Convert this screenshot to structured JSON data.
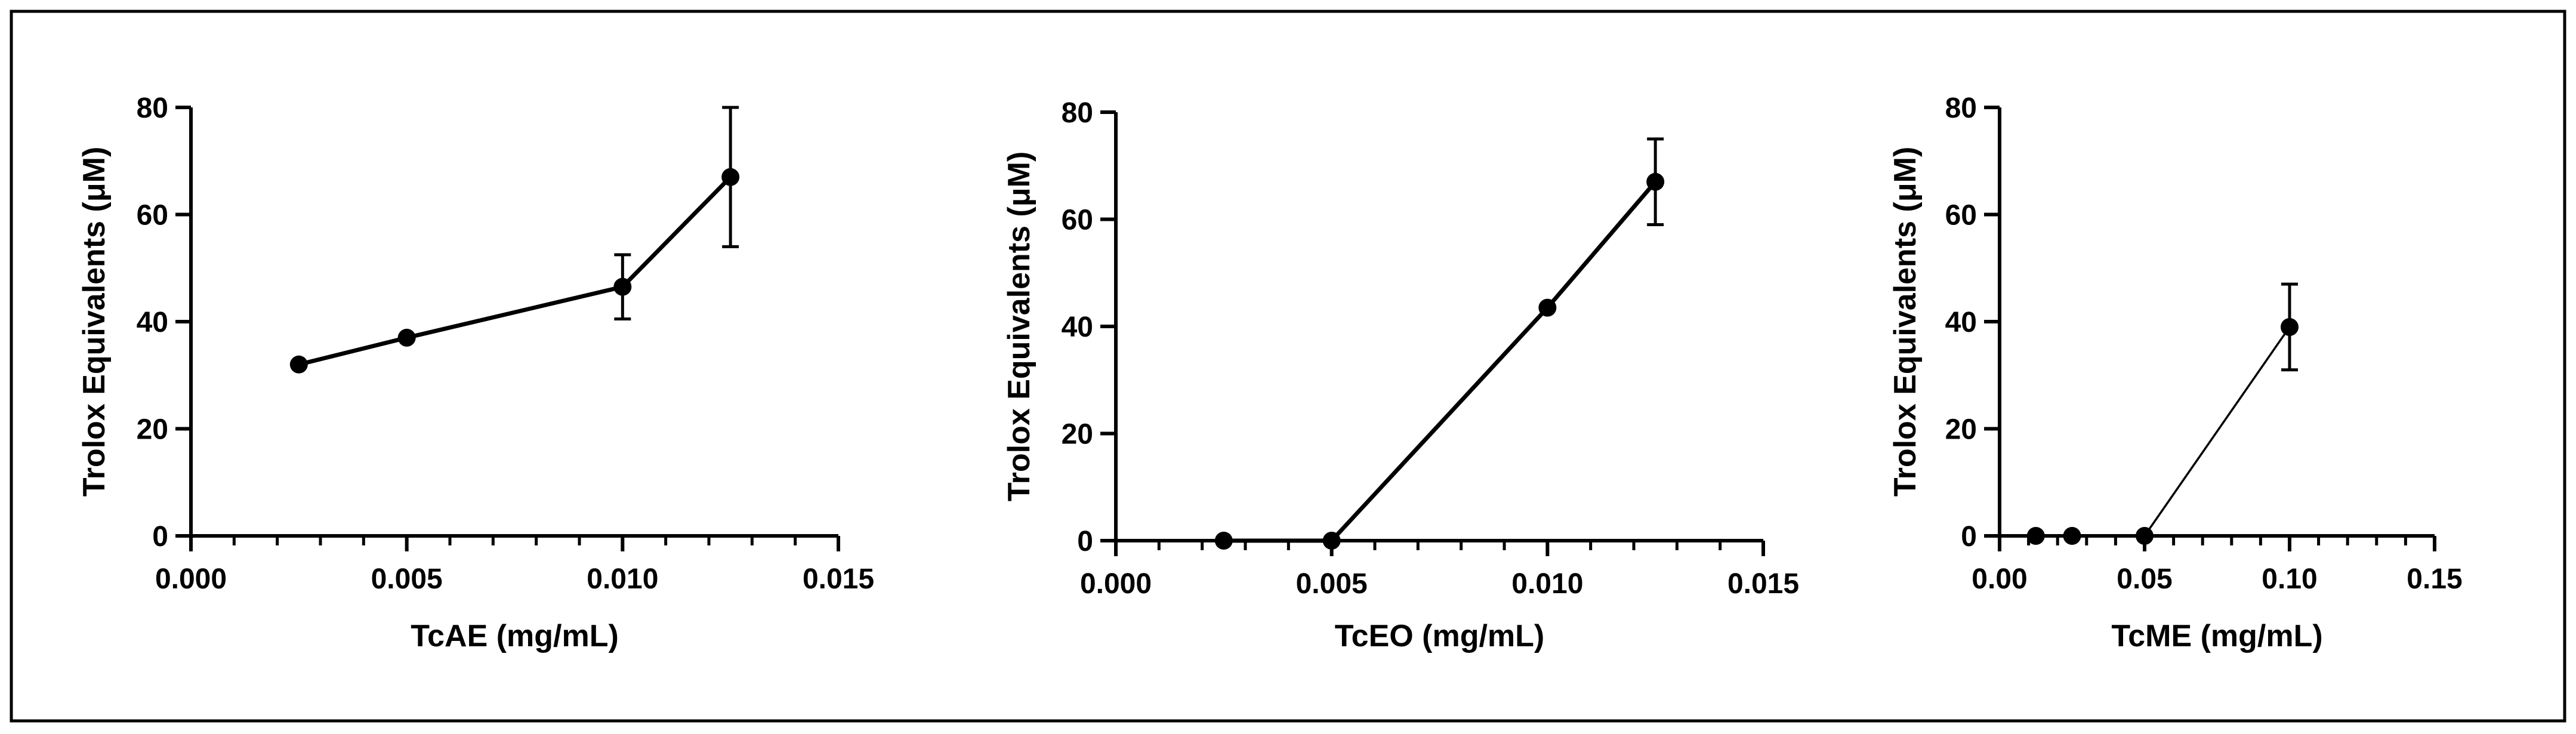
{
  "chart_data": [
    {
      "type": "line",
      "xlabel": "TcAE (mg/mL)",
      "ylabel": "Trolox Equivalents (μM)",
      "xlim": [
        0,
        0.015
      ],
      "ylim": [
        0,
        80
      ],
      "xticks": [
        0.0,
        0.005,
        0.01,
        0.015
      ],
      "xtick_labels": [
        "0.000",
        "0.005",
        "0.010",
        "0.015"
      ],
      "yticks": [
        0,
        20,
        40,
        60,
        80
      ],
      "ytick_labels": [
        "0",
        "20",
        "40",
        "60",
        "80"
      ],
      "x_minor_ticks": 5,
      "series": [
        {
          "name": "TcAE",
          "x": [
            0.0025,
            0.005,
            0.01,
            0.0125
          ],
          "y": [
            32,
            37,
            46.5,
            67
          ],
          "error": [
            0,
            0,
            6,
            13
          ]
        }
      ]
    },
    {
      "type": "line",
      "xlabel": "TcEO (mg/mL)",
      "ylabel": "Trolox Equivalents (μM)",
      "xlim": [
        0,
        0.015
      ],
      "ylim": [
        0,
        80
      ],
      "xticks": [
        0.0,
        0.005,
        0.01,
        0.015
      ],
      "xtick_labels": [
        "0.000",
        "0.005",
        "0.010",
        "0.015"
      ],
      "yticks": [
        0,
        20,
        40,
        60,
        80
      ],
      "ytick_labels": [
        "0",
        "20",
        "40",
        "60",
        "80"
      ],
      "x_minor_ticks": 5,
      "series": [
        {
          "name": "TcEO",
          "x": [
            0.0025,
            0.005,
            0.01,
            0.0125
          ],
          "y": [
            0,
            0,
            43.5,
            67
          ],
          "error": [
            0,
            0,
            0,
            8
          ]
        }
      ]
    },
    {
      "type": "line",
      "xlabel": "TcME (mg/mL)",
      "ylabel": "Trolox Equivalents (μM)",
      "xlim": [
        0,
        0.15
      ],
      "ylim": [
        0,
        80
      ],
      "xticks": [
        0.0,
        0.05,
        0.1,
        0.15
      ],
      "xtick_labels": [
        "0.00",
        "0.05",
        "0.10",
        "0.15"
      ],
      "yticks": [
        0,
        20,
        40,
        60,
        80
      ],
      "ytick_labels": [
        "0",
        "20",
        "40",
        "60",
        "80"
      ],
      "x_minor_ticks": 5,
      "series": [
        {
          "name": "TcME",
          "x": [
            0.0125,
            0.025,
            0.05,
            0.1
          ],
          "y": [
            0,
            0,
            0,
            39
          ],
          "error": [
            0,
            0,
            0,
            8
          ]
        }
      ]
    }
  ]
}
